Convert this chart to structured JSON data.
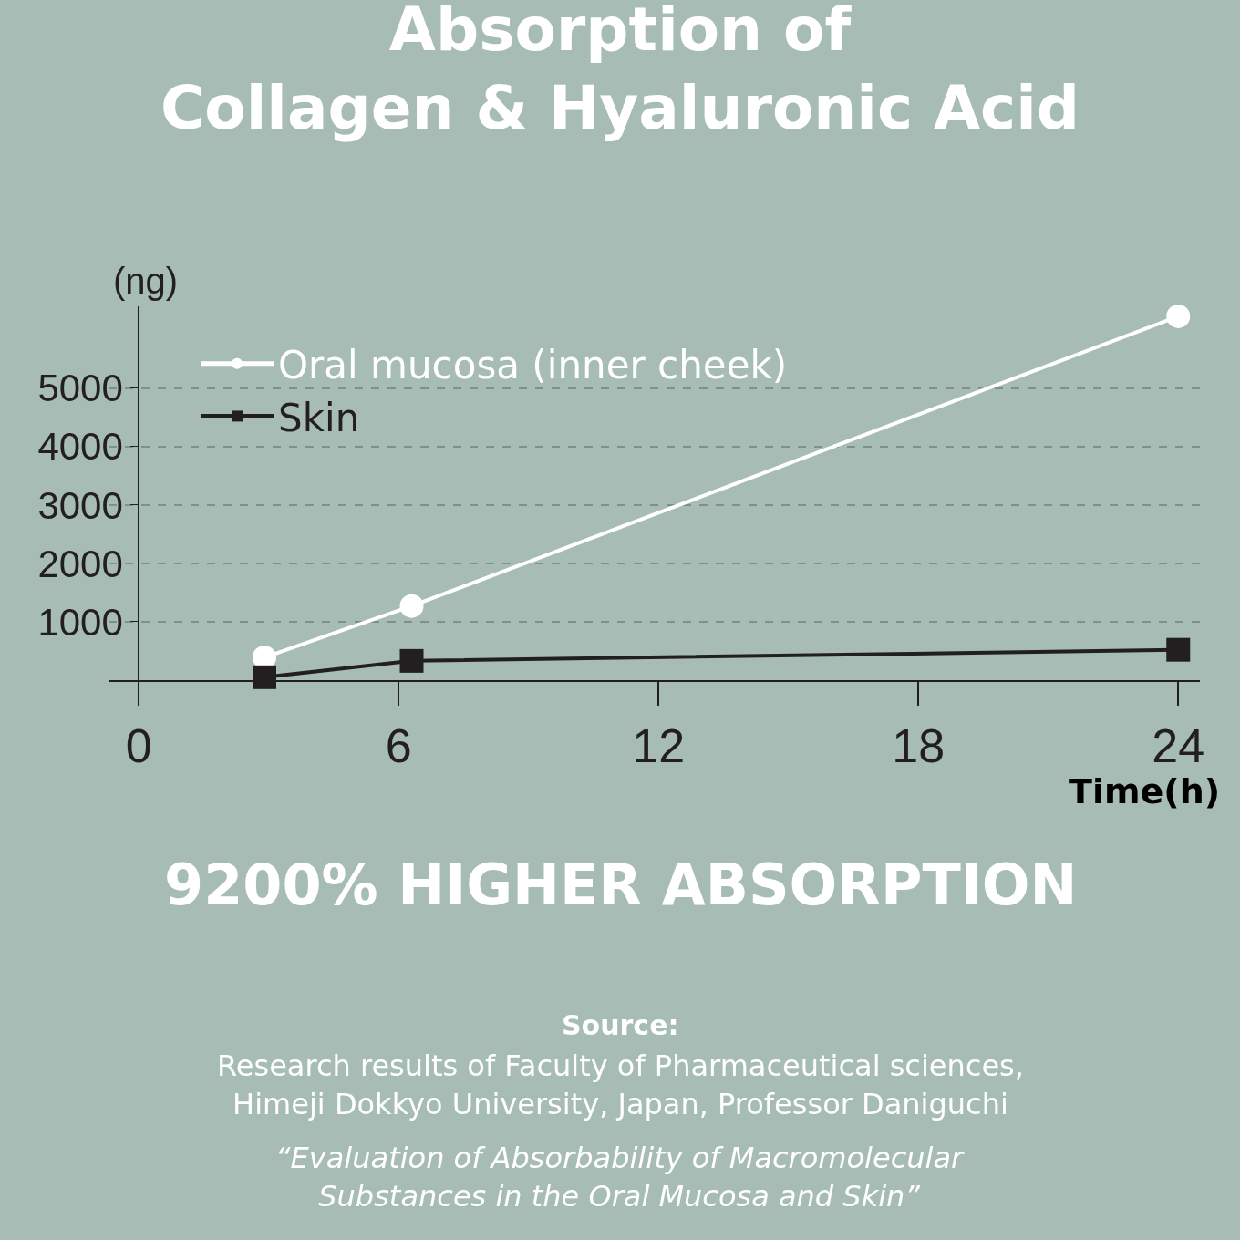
{
  "chart_data": {
    "type": "line",
    "title": "Absorption of\nCollagen & Hyaluronic Acid",
    "xlabel": "Time(h)",
    "ylabel": "(ng)",
    "series": [
      {
        "name": "Oral mucosa (inner cheek)",
        "color": "#ffffff",
        "marker": "circle",
        "x": [
          2.9,
          6.3,
          24
        ],
        "values": [
          390,
          1270,
          6230
        ]
      },
      {
        "name": "Skin",
        "color": "#231f20",
        "marker": "square",
        "x": [
          2.9,
          6.3,
          24
        ],
        "values": [
          50,
          330,
          520
        ]
      }
    ],
    "xlim": [
      -0.7,
      24.5
    ],
    "xticks": [
      0,
      6,
      12,
      18,
      24
    ],
    "ylim": [
      0,
      6400
    ],
    "yticks": [
      {
        "value": 0,
        "label": null
      },
      1000,
      2000,
      3000,
      4000,
      5000
    ],
    "grid": "y",
    "legend": "top left",
    "line_style": "solid",
    "annotations": [
      "9200% HIGHER ABSORPTION",
      "Source:",
      "Research results of Faculty of Pharmaceutical sciences,\nHimeji Dokkyo University, Japan, Professor Daniguchi",
      "“Evaluation of Absorbability of Macromolecular\nSubstances in the Oral Mucosa and Skin”"
    ]
  }
}
